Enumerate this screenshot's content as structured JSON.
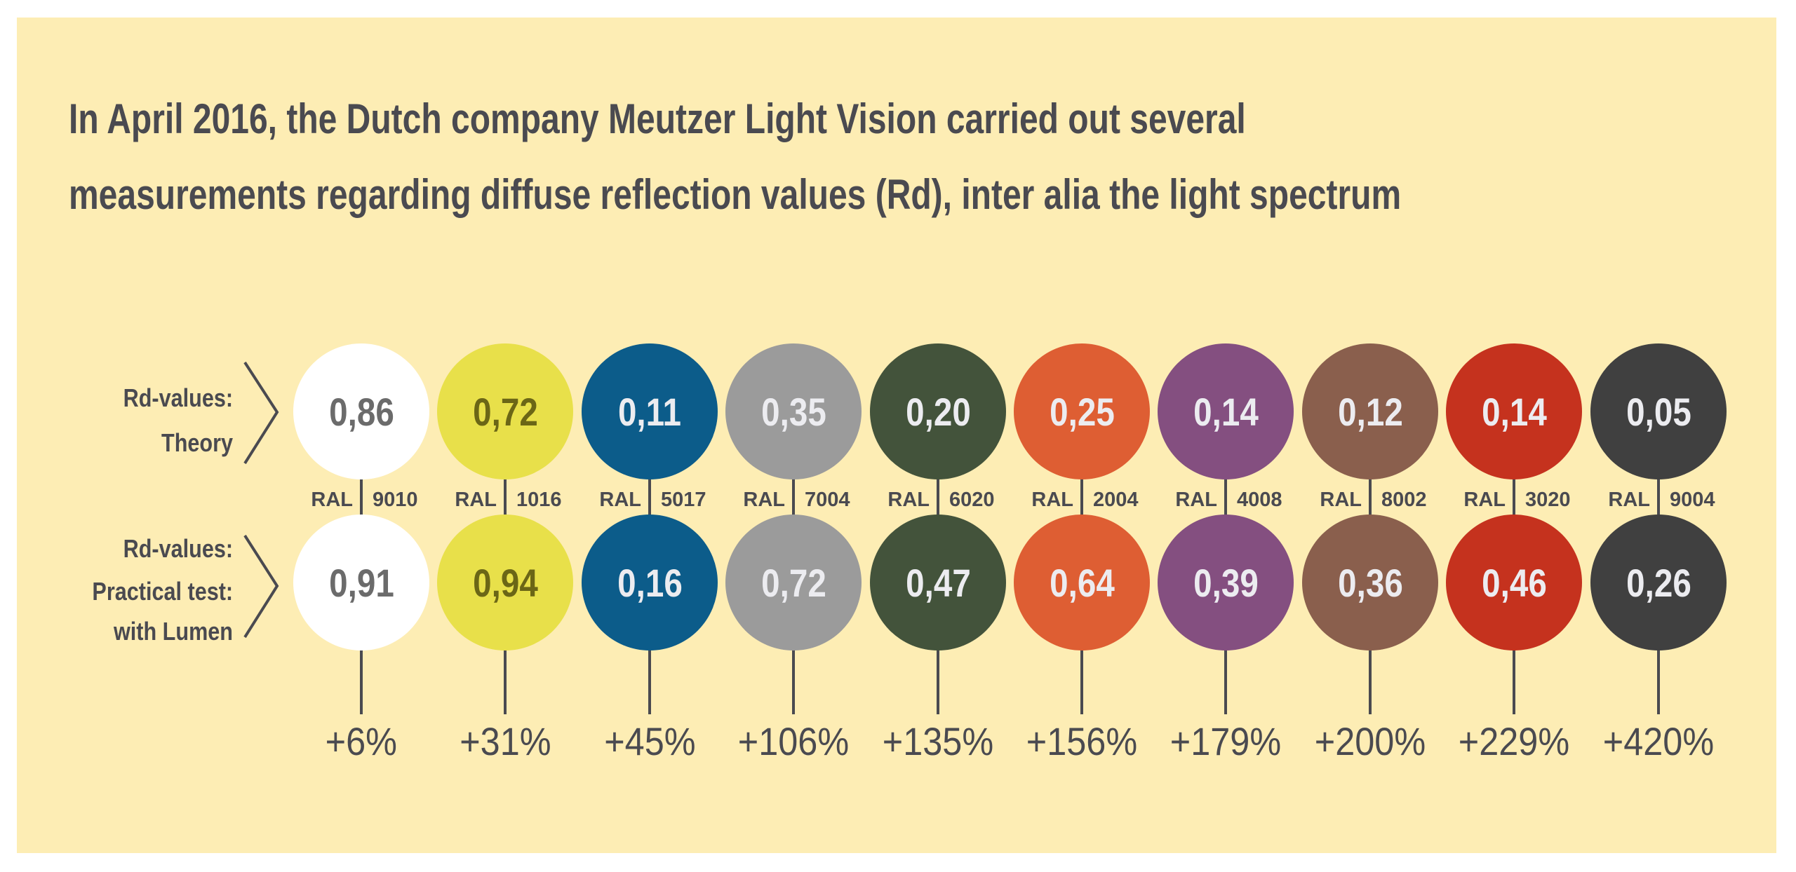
{
  "title": {
    "line1": "In April 2016, the Dutch company Meutzer Light Vision carried out several",
    "line2": "measurements regarding diffuse reflection values (Rd), inter alia the light spectrum"
  },
  "labels": {
    "theory": [
      "Rd-values:",
      "Theory"
    ],
    "practical": [
      "Rd-values:",
      "Practical test:",
      "with Lumen"
    ],
    "ral_prefix": "RAL"
  },
  "colors": {
    "background": "#fdedb4",
    "text": "#4a4a50"
  },
  "chart_data": {
    "type": "table",
    "columns": [
      "RAL",
      "Rd-values: Theory",
      "Rd-values: Practical test: with Lumen",
      "Increase"
    ],
    "items": [
      {
        "ral": "9010",
        "theory": "0,86",
        "practical": "0,91",
        "increase": "+6%",
        "color": "#ffffff",
        "text_color": "#6b6b6b"
      },
      {
        "ral": "1016",
        "theory": "0,72",
        "practical": "0,94",
        "increase": "+31%",
        "color": "#e8e04a",
        "text_color": "#6b6616"
      },
      {
        "ral": "5017",
        "theory": "0,11",
        "practical": "0,16",
        "increase": "+45%",
        "color": "#0c5c8a",
        "text_color": "#ececf0"
      },
      {
        "ral": "7004",
        "theory": "0,35",
        "practical": "0,72",
        "increase": "+106%",
        "color": "#9b9b9b",
        "text_color": "#ececf0"
      },
      {
        "ral": "6020",
        "theory": "0,20",
        "practical": "0,47",
        "increase": "+135%",
        "color": "#43533b",
        "text_color": "#ececf0"
      },
      {
        "ral": "2004",
        "theory": "0,25",
        "practical": "0,64",
        "increase": "+156%",
        "color": "#de5e33",
        "text_color": "#ececf0"
      },
      {
        "ral": "4008",
        "theory": "0,14",
        "practical": "0,39",
        "increase": "+179%",
        "color": "#844f80",
        "text_color": "#ececf0"
      },
      {
        "ral": "8002",
        "theory": "0,12",
        "practical": "0,36",
        "increase": "+200%",
        "color": "#8a5f4d",
        "text_color": "#ececf0"
      },
      {
        "ral": "3020",
        "theory": "0,14",
        "practical": "0,46",
        "increase": "+229%",
        "color": "#c5321e",
        "text_color": "#ececf0"
      },
      {
        "ral": "9004",
        "theory": "0,05",
        "practical": "0,26",
        "increase": "+420%",
        "color": "#404040",
        "text_color": "#ececf0"
      }
    ]
  }
}
